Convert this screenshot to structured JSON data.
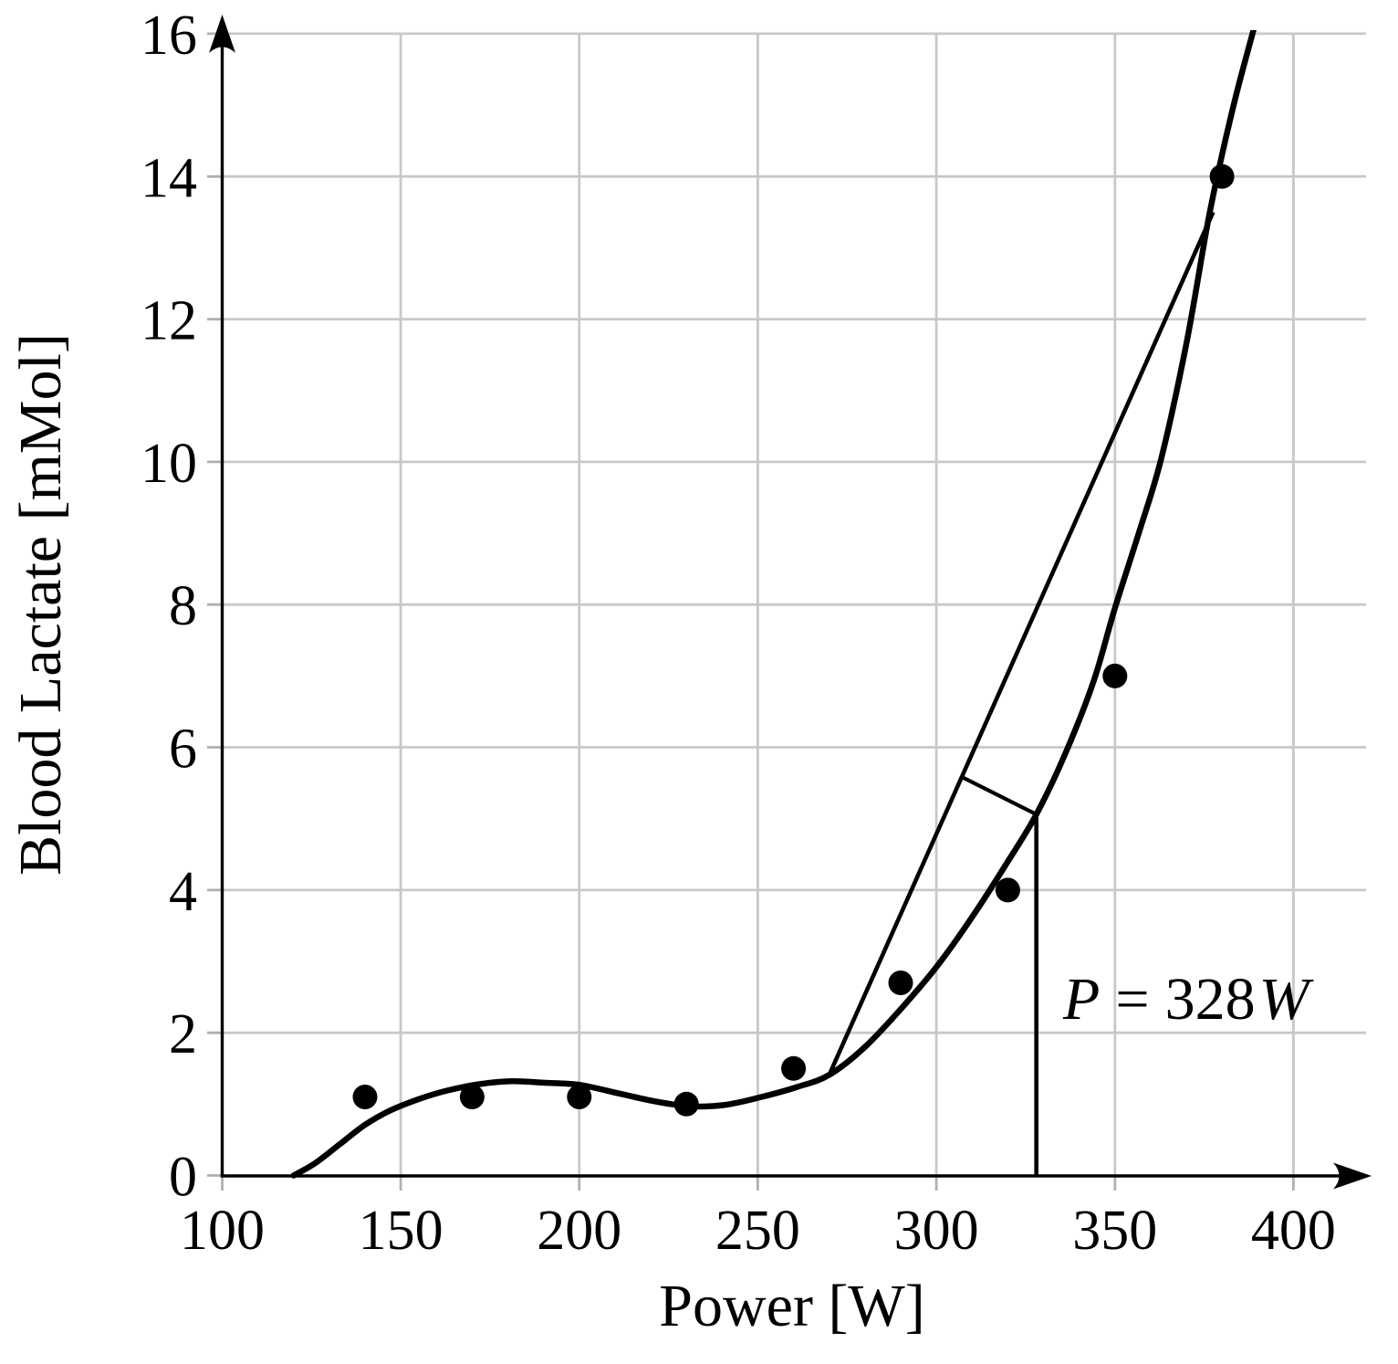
{
  "figure": {
    "background": "#ffffff",
    "axis_color": "#000000",
    "grid_color": "#c8c8c8",
    "tick_color": "#b0b0b0",
    "data_color": "#000000"
  },
  "chart_data": {
    "type": "scatter",
    "title": "",
    "xlabel": "Power [W]",
    "ylabel": "Blood Lactate [mMol]",
    "xlim": [
      100,
      421
    ],
    "ylim": [
      0,
      16
    ],
    "xticks": [
      100,
      150,
      200,
      250,
      300,
      350,
      400
    ],
    "yticks": [
      0,
      2,
      4,
      6,
      8,
      10,
      12,
      14,
      16
    ],
    "grid": true,
    "legend_position": "none",
    "points": [
      [
        140,
        1.1
      ],
      [
        170,
        1.1
      ],
      [
        200,
        1.1
      ],
      [
        230,
        1.0
      ],
      [
        260,
        1.5
      ],
      [
        290,
        2.7
      ],
      [
        320,
        4.0
      ],
      [
        350,
        7.0
      ],
      [
        380,
        14.0
      ]
    ],
    "fit_curve": [
      [
        120,
        0
      ],
      [
        126,
        0.17
      ],
      [
        133,
        0.44
      ],
      [
        140,
        0.71
      ],
      [
        147,
        0.91
      ],
      [
        155,
        1.07
      ],
      [
        163,
        1.19
      ],
      [
        172,
        1.28
      ],
      [
        181,
        1.32
      ],
      [
        190,
        1.3
      ],
      [
        200,
        1.27
      ],
      [
        211,
        1.15
      ],
      [
        221,
        1.04
      ],
      [
        231,
        0.97
      ],
      [
        241,
        0.99
      ],
      [
        251,
        1.1
      ],
      [
        261,
        1.24
      ],
      [
        270,
        1.41
      ],
      [
        280,
        1.8
      ],
      [
        290,
        2.33
      ],
      [
        300,
        2.92
      ],
      [
        310,
        3.62
      ],
      [
        320,
        4.4
      ],
      [
        328,
        5.06
      ],
      [
        336,
        5.9
      ],
      [
        344,
        6.92
      ],
      [
        350,
        7.95
      ],
      [
        357,
        9.05
      ],
      [
        363,
        10.05
      ],
      [
        370,
        11.65
      ],
      [
        376,
        13.35
      ],
      [
        380,
        14.3
      ],
      [
        384,
        15.15
      ],
      [
        388,
        15.9
      ],
      [
        391,
        16.45
      ]
    ],
    "chord_line": [
      [
        270,
        1.41
      ],
      [
        377.5,
        13.5
      ]
    ],
    "dmax_segment": [
      [
        307.3,
        5.58
      ],
      [
        328,
        5.06
      ]
    ],
    "threshold": {
      "x": 328,
      "y_top": 5.06
    },
    "annotation": {
      "p": "P",
      "equals": "=",
      "value": "328",
      "unit": "W"
    }
  }
}
